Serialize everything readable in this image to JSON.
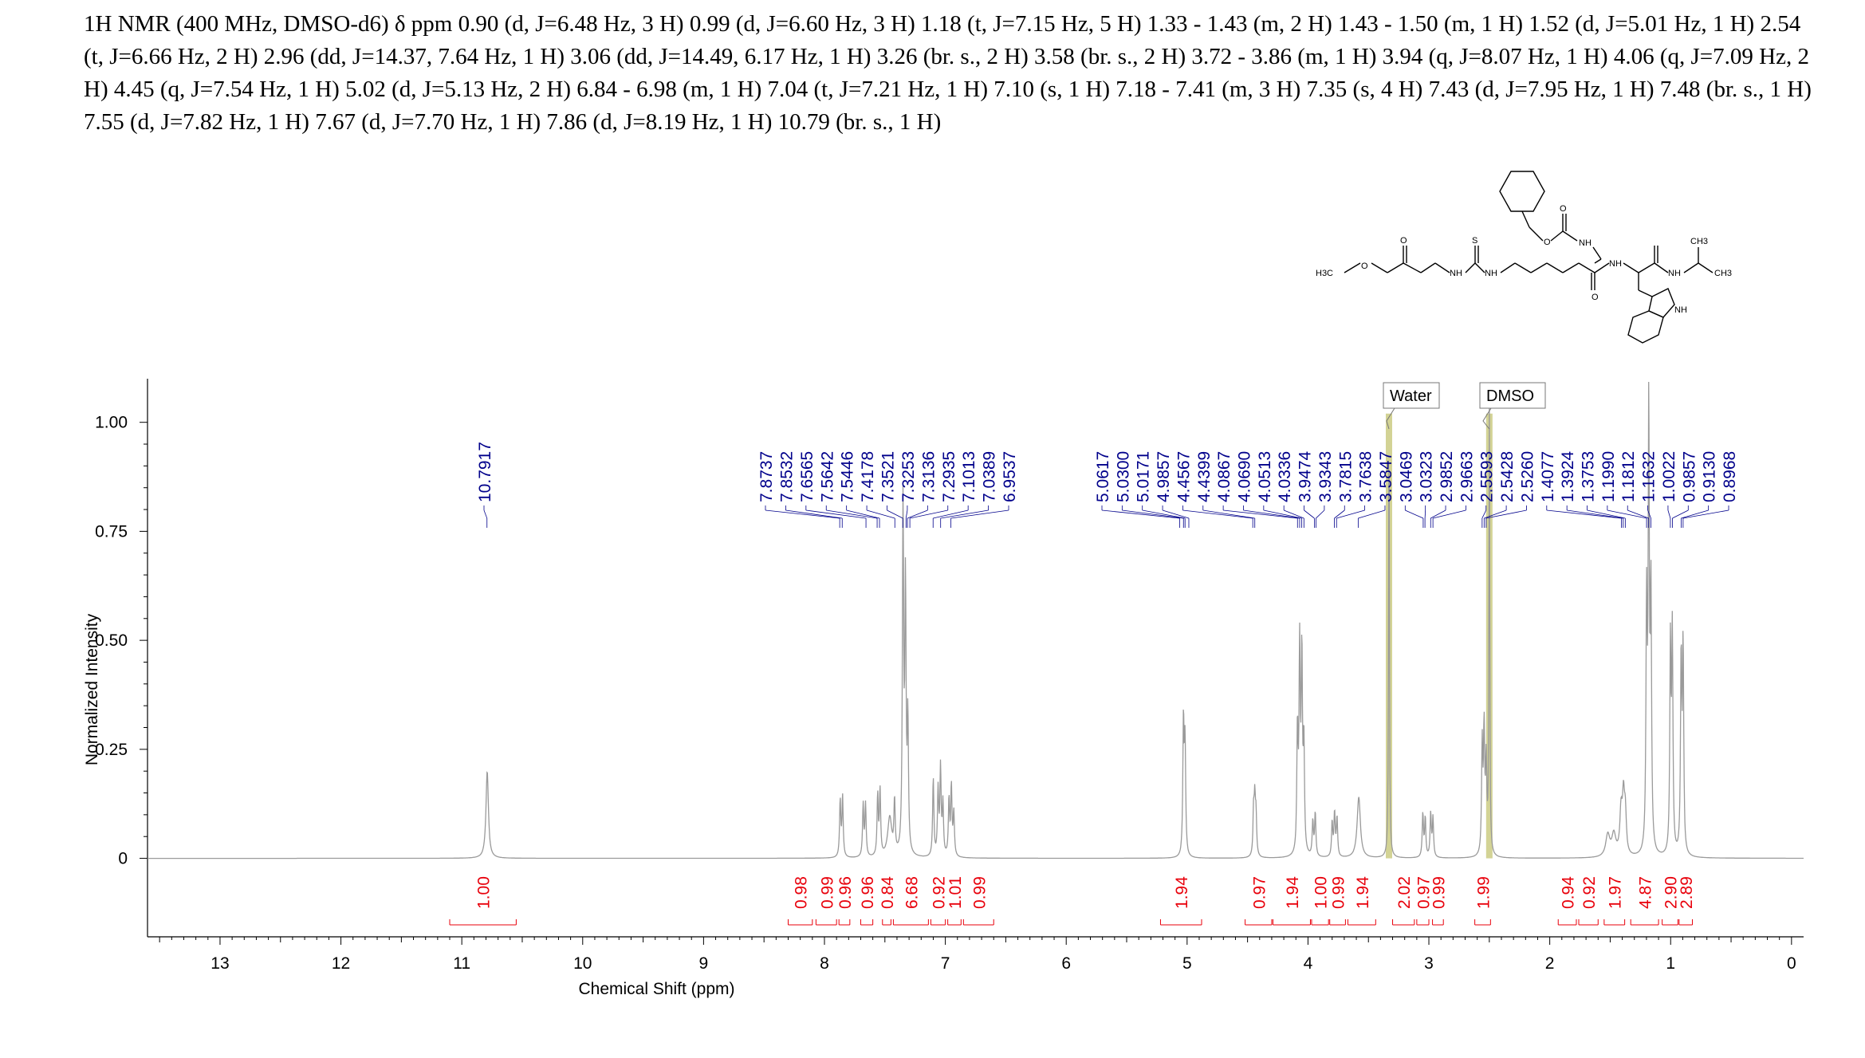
{
  "header_text": "1H NMR (400 MHz, DMSO-d6) δ ppm 0.90 (d, J=6.48 Hz, 3 H) 0.99 (d, J=6.60 Hz, 3 H) 1.18 (t, J=7.15 Hz, 5 H) 1.33 - 1.43 (m, 2 H) 1.43 - 1.50 (m, 1 H) 1.52 (d, J=5.01 Hz, 1 H) 2.54 (t, J=6.66 Hz, 2 H) 2.96 (dd, J=14.37, 7.64 Hz, 1 H) 3.06 (dd, J=14.49, 6.17 Hz, 1 H) 3.26 (br. s., 2 H) 3.58 (br. s., 2 H) 3.72 - 3.86 (m, 1 H) 3.94 (q, J=8.07 Hz, 1 H) 4.06 (q, J=7.09 Hz, 2 H) 4.45 (q, J=7.54 Hz, 1 H) 5.02 (d, J=5.13 Hz, 2 H) 6.84 - 6.98 (m, 1 H) 7.04 (t, J=7.21 Hz, 1 H) 7.10 (s, 1 H) 7.18 - 7.41 (m, 3 H) 7.35 (s, 4 H) 7.43 (d, J=7.95 Hz, 1 H) 7.48 (br. s., 1 H) 7.55 (d, J=7.82 Hz, 1 H) 7.67 (d, J=7.70 Hz, 1 H) 7.86 (d, J=8.19 Hz, 1 H) 10.79 (br. s., 1 H)",
  "molecule_labels": [
    "O",
    "O",
    "O",
    "O",
    "S",
    "H3C",
    "NH",
    "NH",
    "NH",
    "NH",
    "NH",
    "CH3",
    "CH3",
    "NH"
  ],
  "chart_data": {
    "type": "line",
    "xlabel": "Chemical Shift (ppm)",
    "ylabel": "Normalized Intensity",
    "xlim": [
      13.6,
      -0.1
    ],
    "ylim": [
      -0.18,
      1.1
    ],
    "x_ticks": [
      13,
      12,
      11,
      10,
      9,
      8,
      7,
      6,
      5,
      4,
      3,
      2,
      1,
      0
    ],
    "y_ticks": [
      "1.00",
      "0.75",
      "0.50",
      "0.25",
      "0"
    ],
    "y_tick_values": [
      1.0,
      0.75,
      0.5,
      0.25,
      0
    ],
    "peaks": [
      {
        "x": 10.79,
        "h": 0.2,
        "w": 0.012
      },
      {
        "x": 7.87,
        "h": 0.13,
        "w": 0.006
      },
      {
        "x": 7.85,
        "h": 0.14,
        "w": 0.006
      },
      {
        "x": 7.66,
        "h": 0.12,
        "w": 0.006
      },
      {
        "x": 7.68,
        "h": 0.12,
        "w": 0.006
      },
      {
        "x": 7.56,
        "h": 0.14,
        "w": 0.006
      },
      {
        "x": 7.54,
        "h": 0.15,
        "w": 0.006
      },
      {
        "x": 7.46,
        "h": 0.09,
        "w": 0.02
      },
      {
        "x": 7.42,
        "h": 0.12,
        "w": 0.006
      },
      {
        "x": 7.35,
        "h": 0.8,
        "w": 0.006
      },
      {
        "x": 7.33,
        "h": 0.6,
        "w": 0.006
      },
      {
        "x": 7.31,
        "h": 0.3,
        "w": 0.006
      },
      {
        "x": 7.1,
        "h": 0.18,
        "w": 0.006
      },
      {
        "x": 7.06,
        "h": 0.15,
        "w": 0.006
      },
      {
        "x": 7.04,
        "h": 0.2,
        "w": 0.006
      },
      {
        "x": 7.02,
        "h": 0.12,
        "w": 0.006
      },
      {
        "x": 6.97,
        "h": 0.13,
        "w": 0.006
      },
      {
        "x": 6.95,
        "h": 0.16,
        "w": 0.006
      },
      {
        "x": 6.93,
        "h": 0.1,
        "w": 0.006
      },
      {
        "x": 5.03,
        "h": 0.31,
        "w": 0.006
      },
      {
        "x": 5.017,
        "h": 0.25,
        "w": 0.006
      },
      {
        "x": 4.45,
        "h": 0.1,
        "w": 0.006
      },
      {
        "x": 4.44,
        "h": 0.12,
        "w": 0.006
      },
      {
        "x": 4.43,
        "h": 0.09,
        "w": 0.006
      },
      {
        "x": 4.087,
        "h": 0.28,
        "w": 0.006
      },
      {
        "x": 4.069,
        "h": 0.46,
        "w": 0.006
      },
      {
        "x": 4.051,
        "h": 0.45,
        "w": 0.006
      },
      {
        "x": 4.034,
        "h": 0.25,
        "w": 0.006
      },
      {
        "x": 3.96,
        "h": 0.08,
        "w": 0.006
      },
      {
        "x": 3.94,
        "h": 0.1,
        "w": 0.006
      },
      {
        "x": 3.8,
        "h": 0.08,
        "w": 0.006
      },
      {
        "x": 3.78,
        "h": 0.1,
        "w": 0.006
      },
      {
        "x": 3.76,
        "h": 0.09,
        "w": 0.006
      },
      {
        "x": 3.58,
        "h": 0.14,
        "w": 0.016
      },
      {
        "x": 3.33,
        "h": 1.02,
        "w": 0.004
      },
      {
        "x": 3.05,
        "h": 0.1,
        "w": 0.006
      },
      {
        "x": 3.03,
        "h": 0.09,
        "w": 0.006
      },
      {
        "x": 2.985,
        "h": 0.1,
        "w": 0.006
      },
      {
        "x": 2.966,
        "h": 0.09,
        "w": 0.006
      },
      {
        "x": 2.559,
        "h": 0.25,
        "w": 0.006
      },
      {
        "x": 2.543,
        "h": 0.28,
        "w": 0.006
      },
      {
        "x": 2.526,
        "h": 0.2,
        "w": 0.006
      },
      {
        "x": 2.5,
        "h": 1.02,
        "w": 0.004
      },
      {
        "x": 1.52,
        "h": 0.05,
        "w": 0.02
      },
      {
        "x": 1.47,
        "h": 0.05,
        "w": 0.02
      },
      {
        "x": 1.41,
        "h": 0.1,
        "w": 0.012
      },
      {
        "x": 1.39,
        "h": 0.12,
        "w": 0.01
      },
      {
        "x": 1.375,
        "h": 0.09,
        "w": 0.01
      },
      {
        "x": 1.199,
        "h": 0.55,
        "w": 0.006
      },
      {
        "x": 1.181,
        "h": 1.0,
        "w": 0.006
      },
      {
        "x": 1.163,
        "h": 0.58,
        "w": 0.006
      },
      {
        "x": 1.002,
        "h": 0.48,
        "w": 0.006
      },
      {
        "x": 0.986,
        "h": 0.5,
        "w": 0.006
      },
      {
        "x": 0.913,
        "h": 0.45,
        "w": 0.006
      },
      {
        "x": 0.897,
        "h": 0.47,
        "w": 0.006
      }
    ],
    "peak_labels_left": [
      "10.7917"
    ],
    "peak_labels_aromatic": [
      "7.8737",
      "7.8532",
      "7.6565",
      "7.5642",
      "7.5446",
      "7.4178",
      "7.3521",
      "7.3253",
      "7.3136",
      "7.2935",
      "7.1013",
      "7.0389",
      "6.9537"
    ],
    "peak_labels_aliphatic": [
      "5.0617",
      "5.0300",
      "5.0171",
      "4.9857",
      "4.4567",
      "4.4399",
      "4.0867",
      "4.0690",
      "4.0513",
      "4.0336",
      "3.9474",
      "3.9343",
      "3.7815",
      "3.7638",
      "3.5847",
      "3.0469",
      "3.0323",
      "2.9852",
      "2.9663",
      "2.5593",
      "2.5428",
      "2.5260",
      "1.4077",
      "1.3924",
      "1.3753",
      "1.1990",
      "1.1812",
      "1.1632",
      "1.0022",
      "0.9857",
      "0.9130",
      "0.8968"
    ],
    "integrals": [
      {
        "value": "1.00",
        "from": 11.1,
        "to": 10.55
      },
      {
        "value": "0.98",
        "from": 8.3,
        "to": 8.1
      },
      {
        "value": "0.99",
        "from": 8.07,
        "to": 7.9
      },
      {
        "value": "0.96",
        "from": 7.88,
        "to": 7.79
      },
      {
        "value": "0.96",
        "from": 7.7,
        "to": 7.6
      },
      {
        "value": "0.84",
        "from": 7.52,
        "to": 7.45
      },
      {
        "value": "6.68",
        "from": 7.43,
        "to": 7.14
      },
      {
        "value": "0.92",
        "from": 7.12,
        "to": 7.0
      },
      {
        "value": "1.01",
        "from": 6.98,
        "to": 6.87
      },
      {
        "value": "0.99",
        "from": 6.85,
        "to": 6.6
      },
      {
        "value": "1.94",
        "from": 5.22,
        "to": 4.88
      },
      {
        "value": "0.97",
        "from": 4.52,
        "to": 4.3
      },
      {
        "value": "1.94",
        "from": 4.29,
        "to": 3.98
      },
      {
        "value": "1.00",
        "from": 3.97,
        "to": 3.83
      },
      {
        "value": "0.99",
        "from": 3.82,
        "to": 3.69
      },
      {
        "value": "1.94",
        "from": 3.67,
        "to": 3.44
      },
      {
        "value": "2.02",
        "from": 3.3,
        "to": 3.12
      },
      {
        "value": "0.97",
        "from": 3.1,
        "to": 3.0
      },
      {
        "value": "0.99",
        "from": 2.97,
        "to": 2.88
      },
      {
        "value": "1.99",
        "from": 2.62,
        "to": 2.49
      },
      {
        "value": "0.94",
        "from": 1.93,
        "to": 1.78
      },
      {
        "value": "0.92",
        "from": 1.76,
        "to": 1.6
      },
      {
        "value": "1.97",
        "from": 1.55,
        "to": 1.38
      },
      {
        "value": "4.87",
        "from": 1.33,
        "to": 1.1
      },
      {
        "value": "2.90",
        "from": 1.07,
        "to": 0.94
      },
      {
        "value": "2.89",
        "from": 0.93,
        "to": 0.82
      }
    ],
    "annotations": [
      {
        "text": "Water",
        "x": 3.33
      },
      {
        "text": "DMSO",
        "x": 2.5
      }
    ],
    "colors": {
      "spectrum": "#9a9a9a",
      "peak_label": "#00008b",
      "integral": "#e8000b",
      "highlight": "#c8c87a",
      "axis": "#000000"
    }
  }
}
